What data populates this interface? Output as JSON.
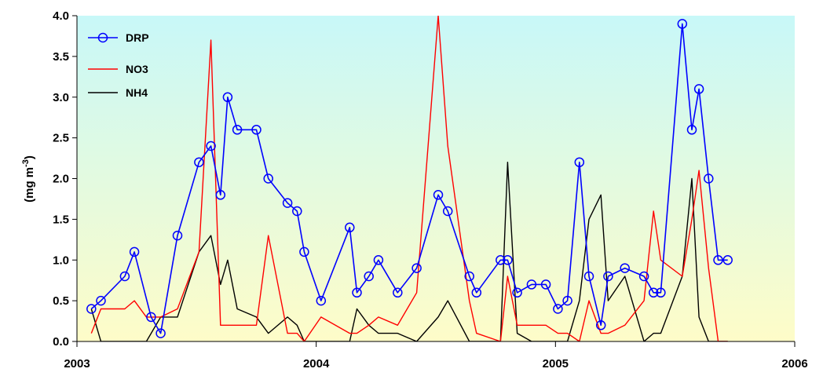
{
  "chart_data": {
    "type": "line",
    "ylabel": "(mg m",
    "ylabel_exponent": "-3",
    "ylabel_close": ")",
    "xlim": [
      2003,
      2006
    ],
    "ylim": [
      0,
      4.0
    ],
    "x_ticks": [
      2003,
      2004,
      2005,
      2006
    ],
    "x_tick_labels": [
      "2003",
      "2004",
      "2005",
      "2006"
    ],
    "y_ticks": [
      0,
      0.5,
      1.0,
      1.5,
      2.0,
      2.5,
      3.0,
      3.5,
      4.0
    ],
    "y_tick_labels": [
      "0.0",
      "0.5",
      "1.0",
      "1.5",
      "2.0",
      "2.5",
      "3.0",
      "3.5",
      "4.0"
    ],
    "background": "gradient light cyan (top) to light yellow (bottom)",
    "legend_position": "top-left",
    "series": [
      {
        "name": "DRP",
        "color": "#0000ff",
        "marker": "circle",
        "x": [
          2003.06,
          2003.1,
          2003.2,
          2003.24,
          2003.31,
          2003.35,
          2003.42,
          2003.51,
          2003.56,
          2003.6,
          2003.63,
          2003.67,
          2003.75,
          2003.8,
          2003.88,
          2003.92,
          2003.95,
          2004.02,
          2004.14,
          2004.17,
          2004.22,
          2004.26,
          2004.34,
          2004.42,
          2004.51,
          2004.55,
          2004.64,
          2004.67,
          2004.77,
          2004.8,
          2004.84,
          2004.9,
          2004.96,
          2005.01,
          2005.05,
          2005.1,
          2005.14,
          2005.19,
          2005.22,
          2005.29,
          2005.37,
          2005.41,
          2005.44,
          2005.53,
          2005.57,
          2005.6,
          2005.64,
          2005.68,
          2005.72
        ],
        "values": [
          0.4,
          0.5,
          0.8,
          1.1,
          0.3,
          0.1,
          1.3,
          2.2,
          2.4,
          1.8,
          3.0,
          2.6,
          2.6,
          2.0,
          1.7,
          1.6,
          1.1,
          0.5,
          1.4,
          0.6,
          0.8,
          1.0,
          0.6,
          0.9,
          1.8,
          1.6,
          0.8,
          0.6,
          1.0,
          1.0,
          0.6,
          0.7,
          0.7,
          0.4,
          0.5,
          2.2,
          0.8,
          0.2,
          0.8,
          0.9,
          0.8,
          0.6,
          0.6,
          3.9,
          2.6,
          3.1,
          2.0,
          1.0,
          1.0
        ]
      },
      {
        "name": "NO3",
        "color": "#ff0000",
        "marker": "none",
        "x": [
          2003.06,
          2003.1,
          2003.2,
          2003.24,
          2003.29,
          2003.35,
          2003.42,
          2003.51,
          2003.56,
          2003.6,
          2003.63,
          2003.67,
          2003.75,
          2003.8,
          2003.88,
          2003.92,
          2003.95,
          2004.02,
          2004.14,
          2004.17,
          2004.22,
          2004.26,
          2004.34,
          2004.42,
          2004.51,
          2004.55,
          2004.64,
          2004.67,
          2004.77,
          2004.8,
          2004.84,
          2004.9,
          2004.96,
          2005.01,
          2005.05,
          2005.1,
          2005.14,
          2005.19,
          2005.22,
          2005.29,
          2005.37,
          2005.41,
          2005.44,
          2005.53,
          2005.57,
          2005.6,
          2005.64,
          2005.68,
          2005.72
        ],
        "values": [
          0.1,
          0.4,
          0.4,
          0.5,
          0.3,
          0.3,
          0.4,
          1.1,
          3.7,
          0.2,
          0.2,
          0.2,
          0.2,
          1.3,
          0.1,
          0.1,
          0.0,
          0.3,
          0.1,
          0.1,
          0.2,
          0.3,
          0.2,
          0.6,
          4.0,
          2.4,
          0.5,
          0.1,
          0.0,
          0.8,
          0.2,
          0.2,
          0.2,
          0.1,
          0.1,
          0.0,
          0.5,
          0.1,
          0.1,
          0.2,
          0.5,
          1.6,
          1.0,
          0.8,
          1.5,
          2.1,
          0.9,
          0.0,
          0.0
        ]
      },
      {
        "name": "NH4",
        "color": "#000000",
        "marker": "none",
        "x": [
          2003.06,
          2003.1,
          2003.2,
          2003.24,
          2003.29,
          2003.35,
          2003.42,
          2003.51,
          2003.56,
          2003.6,
          2003.63,
          2003.67,
          2003.75,
          2003.8,
          2003.88,
          2003.92,
          2003.95,
          2004.02,
          2004.14,
          2004.17,
          2004.22,
          2004.26,
          2004.34,
          2004.42,
          2004.51,
          2004.55,
          2004.64,
          2004.67,
          2004.77,
          2004.8,
          2004.84,
          2004.9,
          2004.96,
          2005.01,
          2005.05,
          2005.1,
          2005.14,
          2005.19,
          2005.22,
          2005.29,
          2005.37,
          2005.41,
          2005.44,
          2005.53,
          2005.57,
          2005.6,
          2005.64,
          2005.68,
          2005.72
        ],
        "values": [
          0.4,
          0.0,
          0.0,
          0.0,
          0.0,
          0.3,
          0.3,
          1.1,
          1.3,
          0.7,
          1.0,
          0.4,
          0.3,
          0.1,
          0.3,
          0.2,
          0.0,
          0.0,
          0.0,
          0.4,
          0.2,
          0.1,
          0.1,
          0.0,
          0.3,
          0.5,
          0.0,
          0.0,
          0.0,
          2.2,
          0.1,
          0.0,
          0.0,
          0.0,
          0.0,
          0.5,
          1.5,
          1.8,
          0.5,
          0.8,
          0.0,
          0.1,
          0.1,
          0.8,
          2.0,
          0.3,
          0.0,
          0.0,
          0.0
        ]
      }
    ]
  }
}
